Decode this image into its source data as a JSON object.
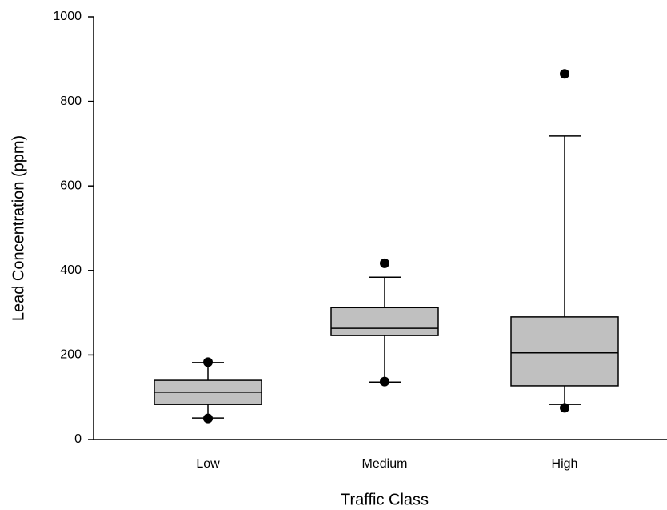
{
  "chart_data": {
    "type": "box",
    "xlabel": "Traffic Class",
    "ylabel": "Lead Concentration (ppm)",
    "categories": [
      "Low",
      "Medium",
      "High"
    ],
    "boxes": [
      {
        "min": 51,
        "q1": 83,
        "median": 112,
        "q3": 140,
        "max": 182,
        "outliers": [
          183,
          50
        ]
      },
      {
        "min": 136,
        "q1": 246,
        "median": 263,
        "q3": 312,
        "max": 384,
        "outliers": [
          417,
          137
        ]
      },
      {
        "min": 83,
        "q1": 127,
        "median": 205,
        "q3": 290,
        "max": 718,
        "outliers": [
          865,
          75
        ]
      }
    ],
    "color": "#c0c0c0",
    "ylim": [
      0,
      1000
    ],
    "yticks": [
      0,
      200,
      400,
      600,
      800,
      1000
    ]
  }
}
